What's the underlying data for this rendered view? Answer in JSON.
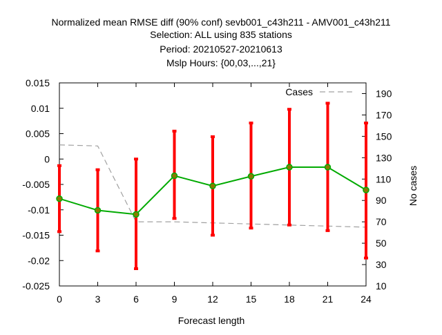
{
  "chart_data": {
    "type": "line",
    "title_lines": [
      "Normalized mean RMSE diff (90% conf) sevb001_c43h211 - AMV001_c43h211",
      "Selection: ALL using   835 stations",
      "Period: 20210527-20210613",
      "Mslp   Hours: {00,03,...,21}"
    ],
    "xlabel": "Forecast length",
    "ylabel": "",
    "y2label": "No cases",
    "x": [
      0,
      3,
      6,
      9,
      12,
      15,
      18,
      21,
      24
    ],
    "xlim": [
      0,
      24
    ],
    "ylim": [
      -0.025,
      0.015
    ],
    "y2lim": [
      10,
      200
    ],
    "xticks": [
      "0",
      "3",
      "6",
      "9",
      "12",
      "15",
      "18",
      "21",
      "24"
    ],
    "yticks": [
      "0.015",
      "0.01",
      "0.005",
      "0",
      "-0.005",
      "-0.01",
      "-0.015",
      "-0.02",
      "-0.025"
    ],
    "y2ticks": [
      "190",
      "170",
      "150",
      "130",
      "110",
      "90",
      "70",
      "50",
      "30",
      "10"
    ],
    "grid": false,
    "legend_position": "top-right",
    "series": [
      {
        "values": [
          -0.0078,
          -0.0101,
          -0.0109,
          -0.0033,
          -0.0053,
          -0.0034,
          -0.0016,
          -0.0016,
          -0.0061
        ],
        "err_low": [
          -0.0143,
          -0.0181,
          -0.0216,
          -0.0117,
          -0.015,
          -0.0136,
          -0.013,
          -0.0141,
          -0.0195
        ],
        "err_high": [
          -0.0013,
          -0.0021,
          0.0,
          0.0055,
          0.0044,
          0.0071,
          0.0098,
          0.011,
          0.0071
        ],
        "line_color": "#00aa00",
        "error_color": "#ff0000"
      },
      {
        "name": "Cases",
        "axis": "y2",
        "style": "dashed",
        "x": [
          0,
          3,
          6,
          9,
          12,
          15,
          18,
          21,
          24
        ],
        "values": [
          142,
          141,
          70,
          70,
          69,
          68,
          67,
          66,
          65
        ],
        "color": "#a0a0a0"
      }
    ]
  }
}
